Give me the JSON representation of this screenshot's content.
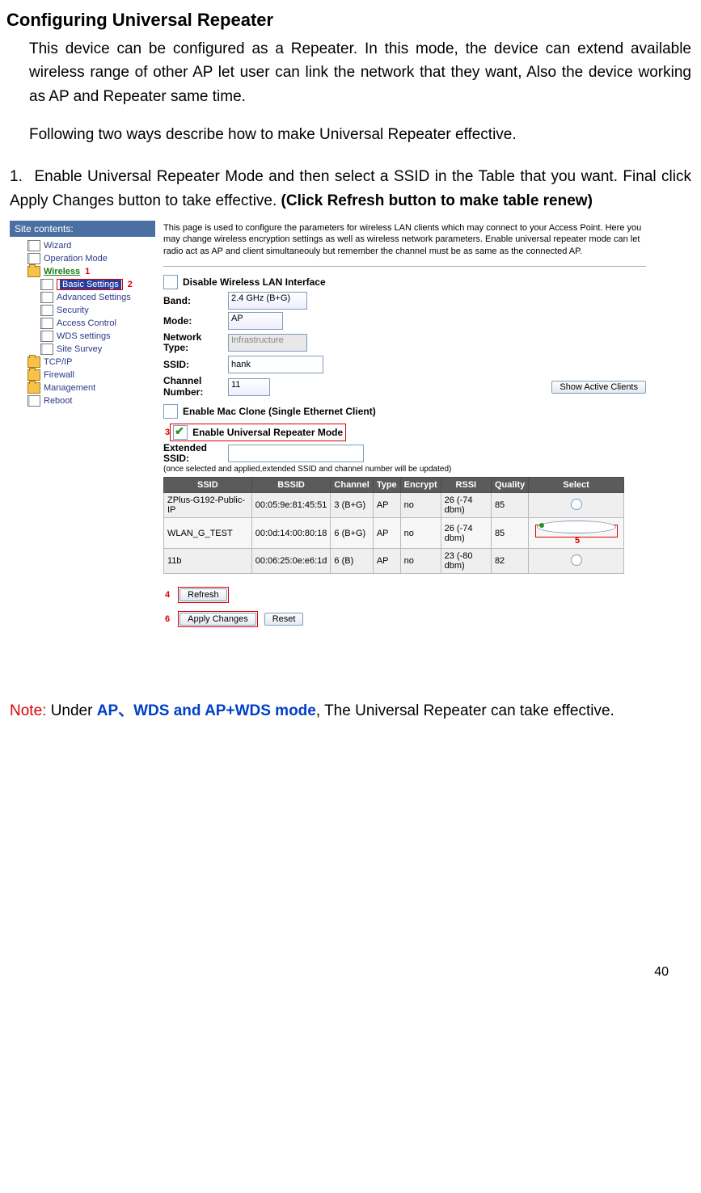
{
  "doc": {
    "heading": "Configuring Universal Repeater",
    "intro": "This device can be configured as a Repeater. In this mode, the device can extend available wireless range of other AP let user can link the network that they want, Also the device working as AP and Repeater same time.",
    "follow": "Following two ways describe how to make Universal Repeater effective.",
    "step_num": "1.",
    "step_text_a": "Enable Universal Repeater Mode and then select a SSID in the Table that you want. Final click Apply Changes button to take effective. ",
    "step_text_b": "(Click Refresh button to make table renew)",
    "note_prefix": "Note: ",
    "note_mid": "Under ",
    "note_blue": "AP、WDS and AP+WDS mode",
    "note_tail": ", The Universal Repeater can take effective.",
    "page_number": "40"
  },
  "sidebar": {
    "title": "Site contents:",
    "items": [
      {
        "icon": "page",
        "label": "Wizard",
        "indent": 1
      },
      {
        "icon": "page",
        "label": "Operation Mode",
        "indent": 1
      },
      {
        "icon": "folder",
        "label": "Wireless",
        "indent": 1,
        "green": true,
        "callout": "1"
      },
      {
        "icon": "page",
        "label": "Basic Settings",
        "indent": 2,
        "basic": true,
        "callout": "2"
      },
      {
        "icon": "page",
        "label": "Advanced Settings",
        "indent": 2
      },
      {
        "icon": "page",
        "label": "Security",
        "indent": 2
      },
      {
        "icon": "page",
        "label": "Access Control",
        "indent": 2
      },
      {
        "icon": "page",
        "label": "WDS settings",
        "indent": 2
      },
      {
        "icon": "page",
        "label": "Site Survey",
        "indent": 2
      },
      {
        "icon": "folder",
        "label": "TCP/IP",
        "indent": 1
      },
      {
        "icon": "folder",
        "label": "Firewall",
        "indent": 1
      },
      {
        "icon": "folder",
        "label": "Management",
        "indent": 1
      },
      {
        "icon": "page",
        "label": "Reboot",
        "indent": 1
      }
    ]
  },
  "main": {
    "desc": "This page is used to configure the parameters for wireless LAN clients which may connect to your Access Point. Here you may change wireless encryption settings as well as wireless network parameters. Enable universal repeater mode can let radio act as AP and client simultaneouly but remember the channel must be as same as the connected AP.",
    "disable_label": "Disable Wireless LAN Interface",
    "band_label": "Band:",
    "band_value": "2.4 GHz (B+G)",
    "mode_label": "Mode:",
    "mode_value": "AP",
    "ntype_label": "Network Type:",
    "ntype_value": "Infrastructure",
    "ssid_label": "SSID:",
    "ssid_value": "hank",
    "channel_label": "Channel Number:",
    "channel_value": "11",
    "show_clients": "Show Active Clients",
    "mac_clone": "Enable Mac Clone (Single Ethernet Client)",
    "urepeater": "Enable Universal Repeater Mode",
    "ext_ssid_label": "Extended SSID:",
    "ext_note": "(once selected and applied,extended SSID and channel number will be updated)",
    "table": {
      "headers": [
        "SSID",
        "BSSID",
        "Channel",
        "Type",
        "Encrypt",
        "RSSI",
        "Quality",
        "Select"
      ],
      "rows": [
        {
          "ssid": "ZPlus-G192-Public-IP",
          "bssid": "00:05:9e:81:45:51",
          "ch": "3 (B+G)",
          "type": "AP",
          "enc": "no",
          "rssi": "26 (-74 dbm)",
          "q": "85",
          "sel": false
        },
        {
          "ssid": "WLAN_G_TEST",
          "bssid": "00:0d:14:00:80:18",
          "ch": "6 (B+G)",
          "type": "AP",
          "enc": "no",
          "rssi": "26 (-74 dbm)",
          "q": "85",
          "sel": true,
          "callout": "5"
        },
        {
          "ssid": "11b",
          "bssid": "00:06:25:0e:e6:1d",
          "ch": "6 (B)",
          "type": "AP",
          "enc": "no",
          "rssi": "23 (-80 dbm)",
          "q": "82",
          "sel": false
        }
      ]
    },
    "refresh": "Refresh",
    "apply": "Apply Changes",
    "reset": "Reset",
    "callout3": "3",
    "callout4": "4",
    "callout6": "6"
  }
}
